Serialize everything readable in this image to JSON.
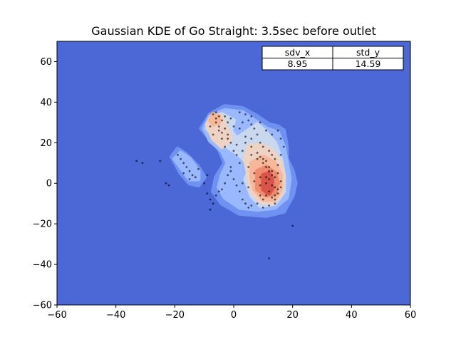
{
  "chart_data": {
    "type": "heatmap",
    "title": "Gaussian KDE of Go Straight: 3.5sec before outlet",
    "xlabel": "",
    "ylabel": "",
    "xlim": [
      -60,
      60
    ],
    "ylim": [
      -60,
      70
    ],
    "xticks": [
      -60,
      -40,
      -20,
      0,
      20,
      40,
      60
    ],
    "yticks": [
      -60,
      -40,
      -20,
      0,
      20,
      40,
      60
    ],
    "xtick_labels": [
      "−60",
      "−40",
      "−20",
      "0",
      "20",
      "40",
      "60"
    ],
    "ytick_labels": [
      "−60",
      "−40",
      "−20",
      "0",
      "20",
      "40",
      "60"
    ],
    "grid": false,
    "colormap": "coolwarm",
    "background_color": "#4c67d6",
    "density_regions": [
      {
        "level": 1,
        "color": "#6f92f2",
        "points": [
          [
            -8,
            34
          ],
          [
            -3,
            38
          ],
          [
            3,
            37
          ],
          [
            8,
            33
          ],
          [
            12,
            29
          ],
          [
            15,
            28
          ],
          [
            17,
            26
          ],
          [
            18,
            18
          ],
          [
            18,
            12
          ],
          [
            20,
            6
          ],
          [
            21,
            0
          ],
          [
            20,
            -6
          ],
          [
            17,
            -14
          ],
          [
            11,
            -16
          ],
          [
            2,
            -15
          ],
          [
            -4,
            -10
          ],
          [
            -7,
            -4
          ],
          [
            -6,
            3
          ],
          [
            -3,
            10
          ],
          [
            -5,
            17
          ],
          [
            -8,
            22
          ],
          [
            -11,
            27
          ]
        ]
      },
      {
        "level": 1,
        "color": "#6f92f2",
        "points": [
          [
            -21,
            13
          ],
          [
            -19,
            17
          ],
          [
            -16,
            14
          ],
          [
            -12,
            8
          ],
          [
            -10,
            3
          ],
          [
            -12,
            -1
          ],
          [
            -15,
            0
          ],
          [
            -18,
            5
          ]
        ]
      },
      {
        "level": 2,
        "color": "#9ab8fd",
        "points": [
          [
            -8,
            33
          ],
          [
            -3,
            36
          ],
          [
            3,
            35
          ],
          [
            7,
            31
          ],
          [
            11,
            27
          ],
          [
            15,
            25
          ],
          [
            17,
            18
          ],
          [
            18,
            10
          ],
          [
            19,
            2
          ],
          [
            18,
            -7
          ],
          [
            14,
            -12
          ],
          [
            8,
            -13
          ],
          [
            2,
            -12
          ],
          [
            -3,
            -7
          ],
          [
            -5,
            -2
          ],
          [
            -4,
            4
          ],
          [
            -2,
            10
          ],
          [
            -4,
            16
          ],
          [
            -8,
            21
          ],
          [
            -10,
            27
          ]
        ]
      },
      {
        "level": 2,
        "color": "#9ab8fd",
        "points": [
          [
            -20,
            12
          ],
          [
            -18,
            15
          ],
          [
            -15,
            12
          ],
          [
            -12,
            6
          ],
          [
            -12,
            2
          ],
          [
            -15,
            2
          ],
          [
            -17,
            6
          ]
        ]
      },
      {
        "level": 3,
        "color": "#c9d7ef",
        "points": [
          [
            -8,
            32
          ],
          [
            -4,
            34
          ],
          [
            0,
            31
          ],
          [
            -1,
            26
          ],
          [
            1,
            22
          ],
          [
            5,
            26
          ],
          [
            8,
            29
          ],
          [
            11,
            25
          ],
          [
            14,
            20
          ],
          [
            16,
            12
          ],
          [
            17,
            4
          ],
          [
            17,
            -4
          ],
          [
            14,
            -10
          ],
          [
            9,
            -11
          ],
          [
            6,
            -6
          ],
          [
            4,
            2
          ],
          [
            6,
            8
          ],
          [
            2,
            14
          ],
          [
            -2,
            18
          ],
          [
            -6,
            22
          ],
          [
            -9,
            27
          ]
        ]
      },
      {
        "level": 4,
        "color": "#eed2c3",
        "points": [
          [
            -7,
            34
          ],
          [
            -4,
            33
          ],
          [
            -3,
            29
          ],
          [
            -1,
            22
          ],
          [
            -4,
            18
          ],
          [
            -7,
            22
          ],
          [
            -9,
            29
          ]
        ]
      },
      {
        "level": 4,
        "color": "#eed2c3",
        "points": [
          [
            5,
            18
          ],
          [
            9,
            19
          ],
          [
            13,
            16
          ],
          [
            16,
            10
          ],
          [
            17,
            2
          ],
          [
            16,
            -6
          ],
          [
            13,
            -10
          ],
          [
            9,
            -9
          ],
          [
            6,
            -4
          ],
          [
            5,
            4
          ],
          [
            4,
            11
          ]
        ]
      },
      {
        "level": 5,
        "color": "#f5b89b",
        "points": [
          [
            -7,
            34
          ],
          [
            -5,
            33
          ],
          [
            -5,
            30
          ],
          [
            -7,
            29
          ],
          [
            -8,
            31
          ]
        ]
      },
      {
        "level": 5,
        "color": "#f5b89b",
        "points": [
          [
            6,
            10
          ],
          [
            10,
            13
          ],
          [
            14,
            10
          ],
          [
            16,
            4
          ],
          [
            16,
            -3
          ],
          [
            14,
            -8
          ],
          [
            10,
            -8
          ],
          [
            7,
            -3
          ],
          [
            6,
            3
          ]
        ]
      },
      {
        "level": 6,
        "color": "#ee8a6e",
        "points": [
          [
            8,
            6
          ],
          [
            11,
            8
          ],
          [
            14,
            5
          ],
          [
            15,
            0
          ],
          [
            14,
            -5
          ],
          [
            11,
            -6
          ],
          [
            8,
            -3
          ],
          [
            8,
            2
          ]
        ]
      },
      {
        "level": 7,
        "color": "#d9544a",
        "points": [
          [
            10,
            4
          ],
          [
            12,
            5
          ],
          [
            13,
            2
          ],
          [
            13,
            -3
          ],
          [
            12,
            -5
          ],
          [
            10,
            -3
          ],
          [
            10,
            1
          ]
        ]
      }
    ],
    "scatter_points": [
      [
        -7,
        34
      ],
      [
        -6,
        35
      ],
      [
        -5,
        33
      ],
      [
        -4,
        31
      ],
      [
        -6,
        30
      ],
      [
        -3,
        27
      ],
      [
        -2,
        24
      ],
      [
        -4,
        22
      ],
      [
        -1,
        20
      ],
      [
        -3,
        18
      ],
      [
        0,
        16
      ],
      [
        1,
        14
      ],
      [
        2,
        35
      ],
      [
        4,
        34
      ],
      [
        5,
        31
      ],
      [
        6,
        29
      ],
      [
        7,
        27
      ],
      [
        8,
        24
      ],
      [
        6,
        22
      ],
      [
        4,
        20
      ],
      [
        9,
        20
      ],
      [
        10,
        18
      ],
      [
        12,
        16
      ],
      [
        13,
        14
      ],
      [
        8,
        12
      ],
      [
        10,
        10
      ],
      [
        11,
        8
      ],
      [
        12,
        6
      ],
      [
        13,
        4
      ],
      [
        14,
        3
      ],
      [
        12,
        2
      ],
      [
        11,
        0
      ],
      [
        13,
        -1
      ],
      [
        14,
        -2
      ],
      [
        12,
        -4
      ],
      [
        11,
        -6
      ],
      [
        13,
        -7
      ],
      [
        14,
        -8
      ],
      [
        10,
        -8
      ],
      [
        9,
        -6
      ],
      [
        15,
        -5
      ],
      [
        16,
        -2
      ],
      [
        16,
        1
      ],
      [
        15,
        5
      ],
      [
        15,
        9
      ],
      [
        14,
        12
      ],
      [
        16,
        14
      ],
      [
        17,
        18
      ],
      [
        16,
        22
      ],
      [
        15,
        26
      ],
      [
        13,
        24
      ],
      [
        11,
        26
      ],
      [
        9,
        30
      ],
      [
        6,
        33
      ],
      [
        3,
        30
      ],
      [
        0,
        28
      ],
      [
        -2,
        30
      ],
      [
        -5,
        26
      ],
      [
        -7,
        24
      ],
      [
        -8,
        28
      ],
      [
        -1,
        6
      ],
      [
        0,
        2
      ],
      [
        1,
        -1
      ],
      [
        2,
        -4
      ],
      [
        3,
        -8
      ],
      [
        4,
        -10
      ],
      [
        5,
        -12
      ],
      [
        6,
        -11
      ],
      [
        8,
        -10
      ],
      [
        10,
        -12
      ],
      [
        12,
        -11
      ],
      [
        14,
        -10
      ],
      [
        -4,
        -3
      ],
      [
        -6,
        -6
      ],
      [
        -8,
        -8
      ],
      [
        -7,
        -10
      ],
      [
        -5,
        -4
      ],
      [
        -3,
        0
      ],
      [
        -2,
        4
      ],
      [
        -1,
        8
      ],
      [
        2,
        10
      ],
      [
        5,
        8
      ],
      [
        7,
        5
      ],
      [
        9,
        3
      ],
      [
        -19,
        14
      ],
      [
        -18,
        12
      ],
      [
        -17,
        10
      ],
      [
        -16,
        8
      ],
      [
        -15,
        6
      ],
      [
        -14,
        4
      ],
      [
        -13,
        3
      ],
      [
        -15,
        2
      ],
      [
        -17,
        5
      ],
      [
        -12,
        7
      ],
      [
        -33,
        11
      ],
      [
        -31,
        10
      ],
      [
        -25,
        11
      ],
      [
        -23,
        0
      ],
      [
        -22,
        -1
      ],
      [
        -9,
        4
      ],
      [
        -10,
        0
      ],
      [
        -9,
        -5
      ],
      [
        -8,
        -13
      ],
      [
        20,
        -21
      ],
      [
        12,
        -37
      ],
      [
        3,
        0
      ],
      [
        5,
        -2
      ],
      [
        7,
        1
      ],
      [
        9,
        -1
      ],
      [
        11,
        3
      ],
      [
        13,
        6
      ],
      [
        15,
        -3
      ],
      [
        14,
        -6
      ],
      [
        12,
        8
      ],
      [
        10,
        12
      ],
      [
        8,
        15
      ],
      [
        6,
        18
      ],
      [
        4,
        23
      ],
      [
        2,
        27
      ],
      [
        -1,
        32
      ],
      [
        -3,
        33
      ],
      [
        -6,
        32
      ],
      [
        -5,
        28
      ],
      [
        -4,
        25
      ],
      [
        -2,
        22
      ],
      [
        1,
        19
      ],
      [
        3,
        16
      ],
      [
        6,
        14
      ],
      [
        9,
        13
      ],
      [
        11,
        11
      ]
    ],
    "table": {
      "headers": [
        "sdv_x",
        "std_y"
      ],
      "values": [
        "8.95",
        "14.59"
      ]
    }
  }
}
